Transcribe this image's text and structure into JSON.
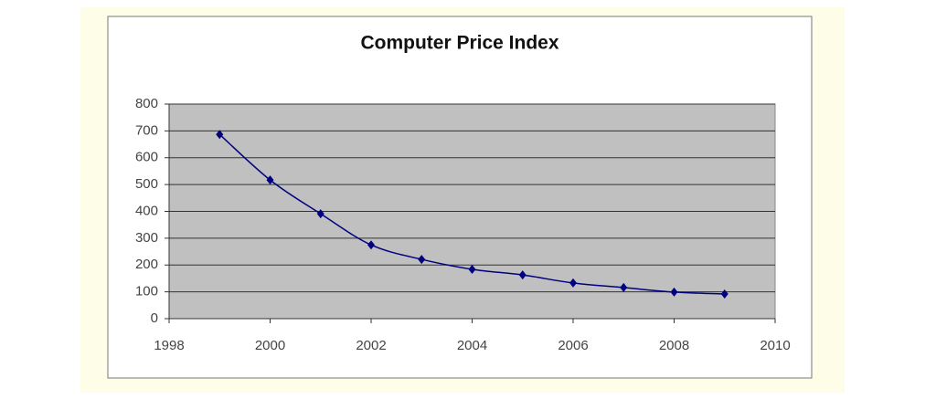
{
  "chart_data": {
    "type": "line",
    "title": "Computer Price Index",
    "x": [
      1999,
      2000,
      2001,
      2002,
      2003,
      2004,
      2005,
      2006,
      2007,
      2008,
      2009
    ],
    "series": [
      {
        "color": "#000080",
        "values": [
          687,
          517,
          391,
          275,
          221,
          184,
          163,
          133,
          116,
          99,
          92
        ]
      }
    ],
    "xlim": [
      1998,
      2010
    ],
    "xticks": [
      1998,
      2000,
      2002,
      2004,
      2006,
      2008,
      2010
    ],
    "ylim": [
      0,
      800
    ],
    "yticks": [
      0,
      100,
      200,
      300,
      400,
      500,
      600,
      700,
      800
    ],
    "grid": true,
    "smooth": true,
    "marker": "diamond"
  }
}
